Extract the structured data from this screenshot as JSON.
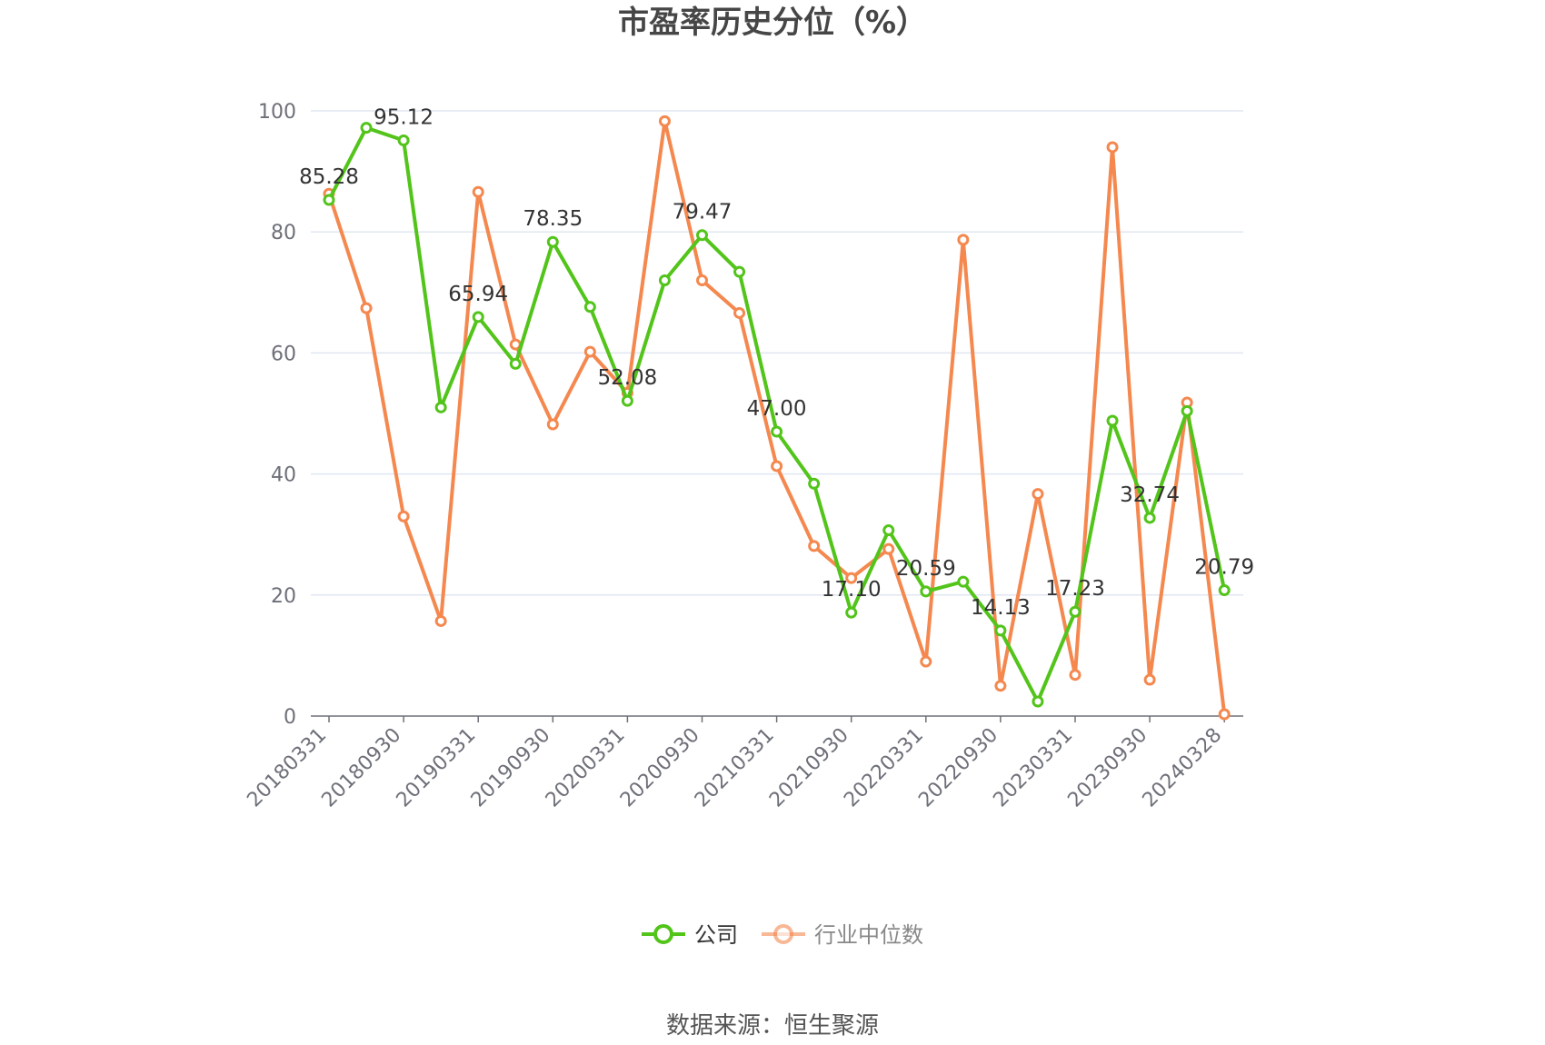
{
  "chart_data": {
    "type": "line",
    "title": "市盈率历史分位（%）",
    "source": "数据来源：恒生聚源",
    "ylim": [
      0,
      100
    ],
    "yticks": [
      0,
      20,
      40,
      60,
      80,
      100
    ],
    "x_tick_labels": [
      "20180331",
      "20180930",
      "20190331",
      "20190930",
      "20200331",
      "20200930",
      "20210331",
      "20210930",
      "20220331",
      "20220930",
      "20230331",
      "20230930",
      "20240328"
    ],
    "x": [
      "20180331",
      "",
      "20180930",
      "",
      "20190331",
      "",
      "20190930",
      "",
      "20200331",
      "",
      "20200930",
      "",
      "20210331",
      "",
      "20210930",
      "",
      "20220331",
      "",
      "20220930",
      "",
      "20230331",
      "",
      "20230930",
      "",
      "20240328"
    ],
    "grid": true,
    "legend_position": "bottom",
    "series": [
      {
        "name": "公司",
        "color": "#52c41a",
        "values": [
          85.28,
          97.2,
          95.12,
          51.0,
          65.94,
          58.2,
          78.35,
          67.6,
          52.08,
          72.0,
          79.47,
          73.4,
          47.0,
          38.4,
          17.1,
          30.7,
          20.59,
          22.2,
          14.13,
          2.4,
          17.23,
          48.8,
          32.74,
          50.4,
          20.79
        ],
        "labels": [
          "85.28",
          "",
          "95.12",
          "",
          "65.94",
          "",
          "78.35",
          "",
          "52.08",
          "",
          "79.47",
          "",
          "47.00",
          "",
          "17.10",
          "",
          "20.59",
          "",
          "14.13",
          "",
          "17.23",
          "",
          "32.74",
          "",
          "20.79"
        ]
      },
      {
        "name": "行业中位数",
        "color": "#f4884f",
        "values": [
          86.3,
          67.4,
          33.0,
          15.7,
          86.6,
          61.4,
          48.2,
          60.2,
          53.4,
          98.3,
          72.0,
          66.6,
          41.3,
          28.1,
          22.8,
          27.6,
          9.0,
          78.7,
          5.0,
          36.7,
          6.8,
          94.0,
          6.0,
          51.8,
          0.3
        ]
      }
    ]
  },
  "legend": {
    "company_label": "公司",
    "industry_label": "行业中位数",
    "company_color": "#52c41a",
    "industry_color": "#f4884f",
    "industry_text_color": "#888888"
  }
}
